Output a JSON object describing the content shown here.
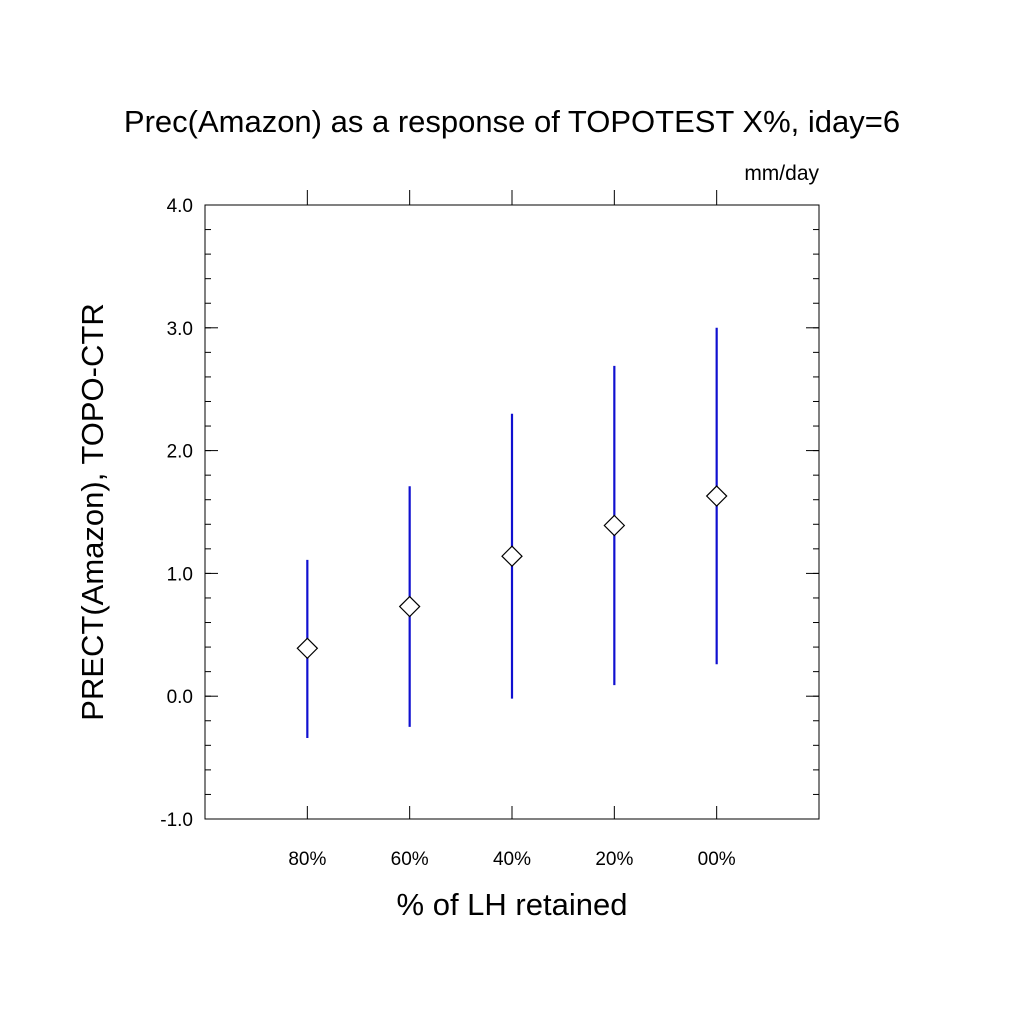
{
  "chart_data": {
    "type": "scatter",
    "title": "Prec(Amazon) as a response of TOPOTEST X%, iday=6",
    "units_label": "mm/day",
    "xlabel": "% of LH retained",
    "ylabel": "PRECT(Amazon), TOPO-CTR",
    "categories": [
      "80%",
      "60%",
      "40%",
      "20%",
      "00%"
    ],
    "y_ticks": [
      "-1.0",
      "0.0",
      "1.0",
      "2.0",
      "3.0",
      "4.0"
    ],
    "ylim": [
      -1.0,
      4.0
    ],
    "xlim": [
      0,
      6
    ],
    "minor_y_step": 0.2,
    "grid": false,
    "series": [
      {
        "marker": "diamond",
        "marker_color": "#000000",
        "errorbar_color": "#1010d0",
        "values": [
          0.39,
          0.73,
          1.14,
          1.39,
          1.63
        ],
        "lower": [
          -0.34,
          -0.25,
          -0.02,
          0.09,
          0.26
        ],
        "upper": [
          1.11,
          1.71,
          2.3,
          2.69,
          3.0
        ]
      }
    ]
  }
}
